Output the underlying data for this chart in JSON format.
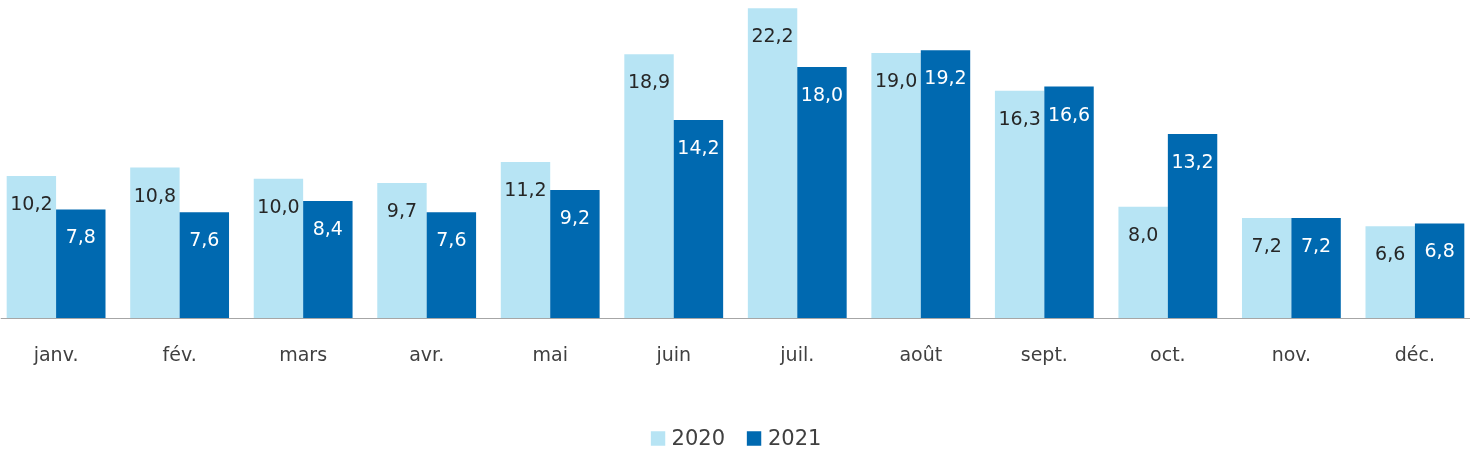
{
  "chart_data": {
    "type": "bar",
    "categories": [
      "janv.",
      "fév.",
      "mars",
      "avr.",
      "mai",
      "juin",
      "juil.",
      "août",
      "sept.",
      "oct.",
      "nov.",
      "déc."
    ],
    "series": [
      {
        "name": "2020",
        "color": "#b7e4f4",
        "values": [
          10.2,
          10.8,
          10.0,
          9.7,
          11.2,
          18.9,
          22.2,
          19.0,
          16.3,
          8.0,
          7.2,
          6.6
        ],
        "value_labels": [
          "10,2",
          "10,8",
          "10,0",
          "9,7",
          "11,2",
          "18,9",
          "22,2",
          "19,0",
          "16,3",
          "8,0",
          "7,2",
          "6,6"
        ]
      },
      {
        "name": "2021",
        "color": "#0069b0",
        "values": [
          7.8,
          7.6,
          8.4,
          7.6,
          9.2,
          14.2,
          18.0,
          19.2,
          16.6,
          13.2,
          7.2,
          6.8
        ],
        "value_labels": [
          "7,8",
          "7,6",
          "8,4",
          "7,6",
          "9,2",
          "14,2",
          "18,0",
          "19,2",
          "16,6",
          "13,2",
          "7,2",
          "6,8"
        ]
      }
    ],
    "tick_labels": "x",
    "grid": false,
    "legend": "bottom"
  }
}
